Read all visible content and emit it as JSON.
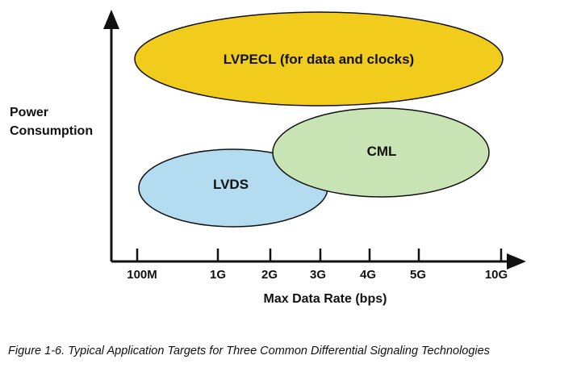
{
  "y_axis_label": {
    "line1": "Power",
    "line2": "Consumption"
  },
  "x_axis_label": "Max Data Rate (bps)",
  "x_ticks": [
    "100M",
    "1G",
    "2G",
    "3G",
    "4G",
    "5G",
    "10G"
  ],
  "regions": [
    {
      "id": "lvpecl",
      "label": "LVPECL (for data and clocks)",
      "color": "#f2cc1d"
    },
    {
      "id": "cml",
      "label": "CML",
      "color": "#c9e4b4"
    },
    {
      "id": "lvds",
      "label": "LVDS",
      "color": "#b3dcf1"
    }
  ],
  "caption": "Figure 1-6. Typical Application Targets for Three Common Differential Signaling Technologies"
}
